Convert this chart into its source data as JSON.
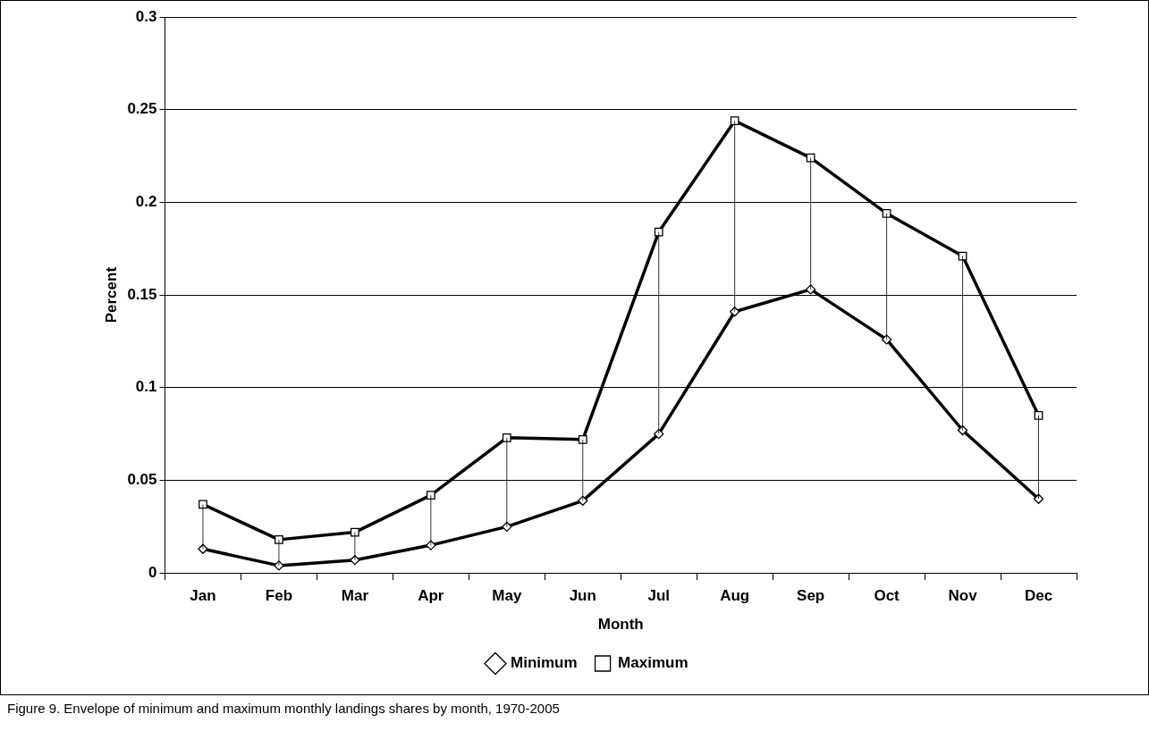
{
  "chart_data": {
    "type": "line",
    "xlabel": "Month",
    "ylabel": "Percent",
    "categories": [
      "Jan",
      "Feb",
      "Mar",
      "Apr",
      "May",
      "Jun",
      "Jul",
      "Aug",
      "Sep",
      "Oct",
      "Nov",
      "Dec"
    ],
    "series": [
      {
        "name": "Minimum",
        "color": "#000000",
        "marker": "diamond",
        "values": [
          0.013,
          0.004,
          0.007,
          0.015,
          0.025,
          0.039,
          0.075,
          0.141,
          0.153,
          0.126,
          0.077,
          0.04
        ],
        "errors": [
          [
            0.013,
            0.037
          ],
          [
            0.004,
            0.018
          ],
          [
            0.007,
            0.022
          ],
          [
            0.015,
            0.042
          ],
          [
            0.025,
            0.073
          ],
          [
            0.039,
            0.072
          ],
          [
            0.075,
            0.184
          ],
          [
            0.141,
            0.244
          ],
          [
            0.153,
            0.224
          ],
          [
            0.126,
            0.194
          ],
          [
            0.077,
            0.171
          ],
          [
            0.04,
            0.085
          ]
        ]
      },
      {
        "name": "Maximum",
        "color": "#000000",
        "marker": "square",
        "values": [
          0.037,
          0.018,
          0.022,
          0.042,
          0.073,
          0.072,
          0.184,
          0.244,
          0.224,
          0.194,
          0.171,
          0.085
        ]
      }
    ],
    "ylim": [
      0,
      0.3
    ],
    "yticks": [
      0,
      0.05,
      0.1,
      0.15,
      0.2,
      0.25,
      0.3
    ],
    "grid": "y",
    "legend": "bottom",
    "line_style": "solid",
    "annotations": [
      "Figure 9. Envelope of minimum and maximum monthly landings shares by month, 1970-2005"
    ]
  }
}
